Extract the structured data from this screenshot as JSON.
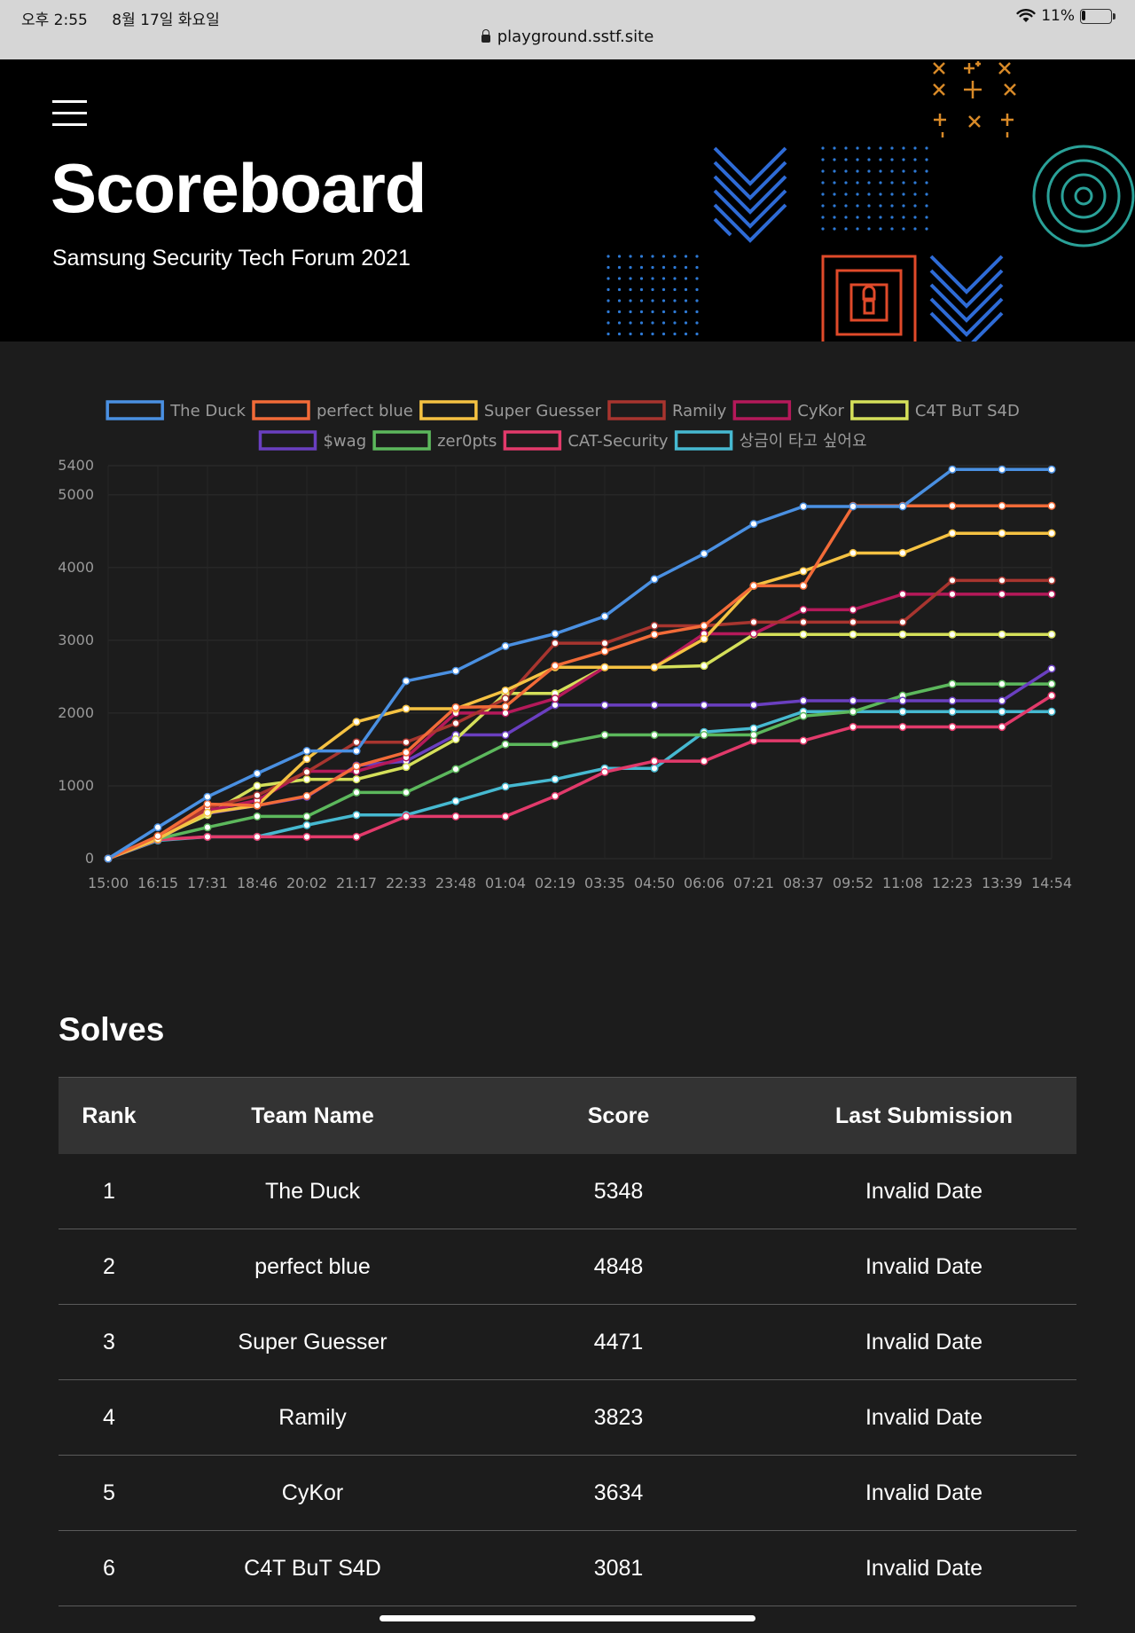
{
  "status_bar": {
    "time": "오후 2:55",
    "date": "8월 17일 화요일",
    "battery": "11%",
    "battery_level": 0.11
  },
  "address_bar": {
    "url": "playground.sstf.site"
  },
  "header": {
    "title": "Scoreboard",
    "subtitle": "Samsung Security Tech Forum 2021"
  },
  "chart_data": {
    "type": "line",
    "x": [
      "15:00",
      "16:15",
      "17:31",
      "18:46",
      "20:02",
      "21:17",
      "22:33",
      "23:48",
      "01:04",
      "02:19",
      "03:35",
      "04:50",
      "06:06",
      "07:21",
      "08:37",
      "09:52",
      "11:08",
      "12:23",
      "13:39",
      "14:54"
    ],
    "y_ticks": [
      0,
      1000,
      2000,
      3000,
      4000,
      5000,
      5400
    ],
    "ylim": [
      0,
      5400
    ],
    "grid": true,
    "legend_position": "top",
    "series": [
      {
        "name": "The Duck",
        "color": "#4a90e2",
        "values": [
          0,
          430,
          850,
          1170,
          1480,
          1480,
          2440,
          2580,
          2920,
          3090,
          3330,
          3840,
          4190,
          4600,
          4840,
          4840,
          4840,
          5348,
          5348,
          5348
        ]
      },
      {
        "name": "perfect blue",
        "color": "#f26b38",
        "values": [
          0,
          310,
          750,
          730,
          860,
          1270,
          1460,
          2080,
          2090,
          2650,
          2850,
          3080,
          3200,
          3750,
          3750,
          4848,
          4848,
          4848,
          4848,
          4848
        ]
      },
      {
        "name": "Super Guesser",
        "color": "#f5c242",
        "values": [
          0,
          270,
          630,
          730,
          1370,
          1880,
          2060,
          2060,
          2310,
          2630,
          2630,
          2630,
          3020,
          3750,
          3950,
          4200,
          4200,
          4471,
          4471,
          4471
        ]
      },
      {
        "name": "Ramily",
        "color": "#a8352f",
        "values": [
          0,
          280,
          700,
          870,
          1190,
          1600,
          1600,
          1860,
          2200,
          2960,
          2960,
          3200,
          3200,
          3250,
          3250,
          3250,
          3250,
          3823,
          3823,
          3823
        ]
      },
      {
        "name": "CyKor",
        "color": "#b5195a",
        "values": [
          0,
          270,
          660,
          800,
          1200,
          1200,
          1390,
          2000,
          2000,
          2200,
          2630,
          2630,
          3090,
          3090,
          3420,
          3420,
          3634,
          3634,
          3634,
          3634
        ]
      },
      {
        "name": "C4T BuT S4D",
        "color": "#d5e05a",
        "values": [
          0,
          290,
          600,
          1000,
          1090,
          1090,
          1260,
          1640,
          2270,
          2270,
          2630,
          2630,
          2650,
          3081,
          3081,
          3081,
          3081,
          3081,
          3081,
          3081
        ]
      },
      {
        "name": "$wag",
        "color": "#6a3fc0",
        "values": [
          0,
          270,
          620,
          730,
          850,
          1280,
          1340,
          1700,
          1700,
          2110,
          2110,
          2110,
          2110,
          2110,
          2170,
          2170,
          2170,
          2170,
          2170,
          2610
        ]
      },
      {
        "name": "zer0pts",
        "color": "#5cb85c",
        "values": [
          0,
          270,
          430,
          580,
          580,
          910,
          910,
          1230,
          1570,
          1570,
          1700,
          1700,
          1700,
          1700,
          1960,
          2020,
          2240,
          2400,
          2400,
          2400
        ]
      },
      {
        "name": "CAT-Security",
        "color": "#e23a6b",
        "values": [
          0,
          260,
          300,
          300,
          300,
          300,
          580,
          580,
          580,
          860,
          1190,
          1340,
          1340,
          1620,
          1620,
          1810,
          1810,
          1810,
          1810,
          2240
        ]
      },
      {
        "name": "상금이 타고 싶어요",
        "color": "#46b9d1",
        "values": [
          0,
          250,
          300,
          300,
          460,
          600,
          600,
          790,
          990,
          1090,
          1240,
          1240,
          1740,
          1790,
          2020,
          2020,
          2020,
          2020,
          2020,
          2020
        ]
      }
    ]
  },
  "solves": {
    "title": "Solves",
    "columns": [
      "Rank",
      "Team Name",
      "Score",
      "Last Submission"
    ],
    "rows": [
      [
        "1",
        "The Duck",
        "5348",
        "Invalid Date"
      ],
      [
        "2",
        "perfect blue",
        "4848",
        "Invalid Date"
      ],
      [
        "3",
        "Super Guesser",
        "4471",
        "Invalid Date"
      ],
      [
        "4",
        "Ramily",
        "3823",
        "Invalid Date"
      ],
      [
        "5",
        "CyKor",
        "3634",
        "Invalid Date"
      ],
      [
        "6",
        "C4T BuT S4D",
        "3081",
        "Invalid Date"
      ]
    ]
  }
}
